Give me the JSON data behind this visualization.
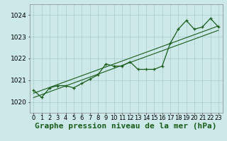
{
  "xlabel": "Graphe pression niveau de la mer (hPa)",
  "bg_color": "#cce8e8",
  "grid_color": "#aacccc",
  "line_color": "#1a5c1a",
  "ylim": [
    1019.5,
    1024.5
  ],
  "xlim": [
    -0.5,
    23.5
  ],
  "yticks": [
    1020,
    1021,
    1022,
    1023,
    1024
  ],
  "xticks": [
    0,
    1,
    2,
    3,
    4,
    5,
    6,
    7,
    8,
    9,
    10,
    11,
    12,
    13,
    14,
    15,
    16,
    17,
    18,
    19,
    20,
    21,
    22,
    23
  ],
  "series1_x": [
    0,
    1,
    2,
    3,
    4,
    5,
    6,
    7,
    8,
    9,
    10,
    11,
    12,
    13,
    14,
    15,
    16,
    17,
    18,
    19,
    20,
    21,
    22,
    23
  ],
  "series1_y": [
    1020.55,
    1020.2,
    1020.65,
    1020.75,
    1020.75,
    1020.65,
    1020.85,
    1021.05,
    1021.25,
    1021.75,
    1021.65,
    1021.65,
    1021.85,
    1021.5,
    1021.5,
    1021.5,
    1021.65,
    1022.7,
    1023.35,
    1023.75,
    1023.35,
    1023.45,
    1023.85,
    1023.45
  ],
  "trend1_x": [
    0,
    23
  ],
  "trend1_y": [
    1020.2,
    1023.3
  ],
  "trend2_x": [
    0,
    23
  ],
  "trend2_y": [
    1020.4,
    1023.5
  ],
  "font_size_xlabel": 8,
  "tick_fontsize": 6.5
}
